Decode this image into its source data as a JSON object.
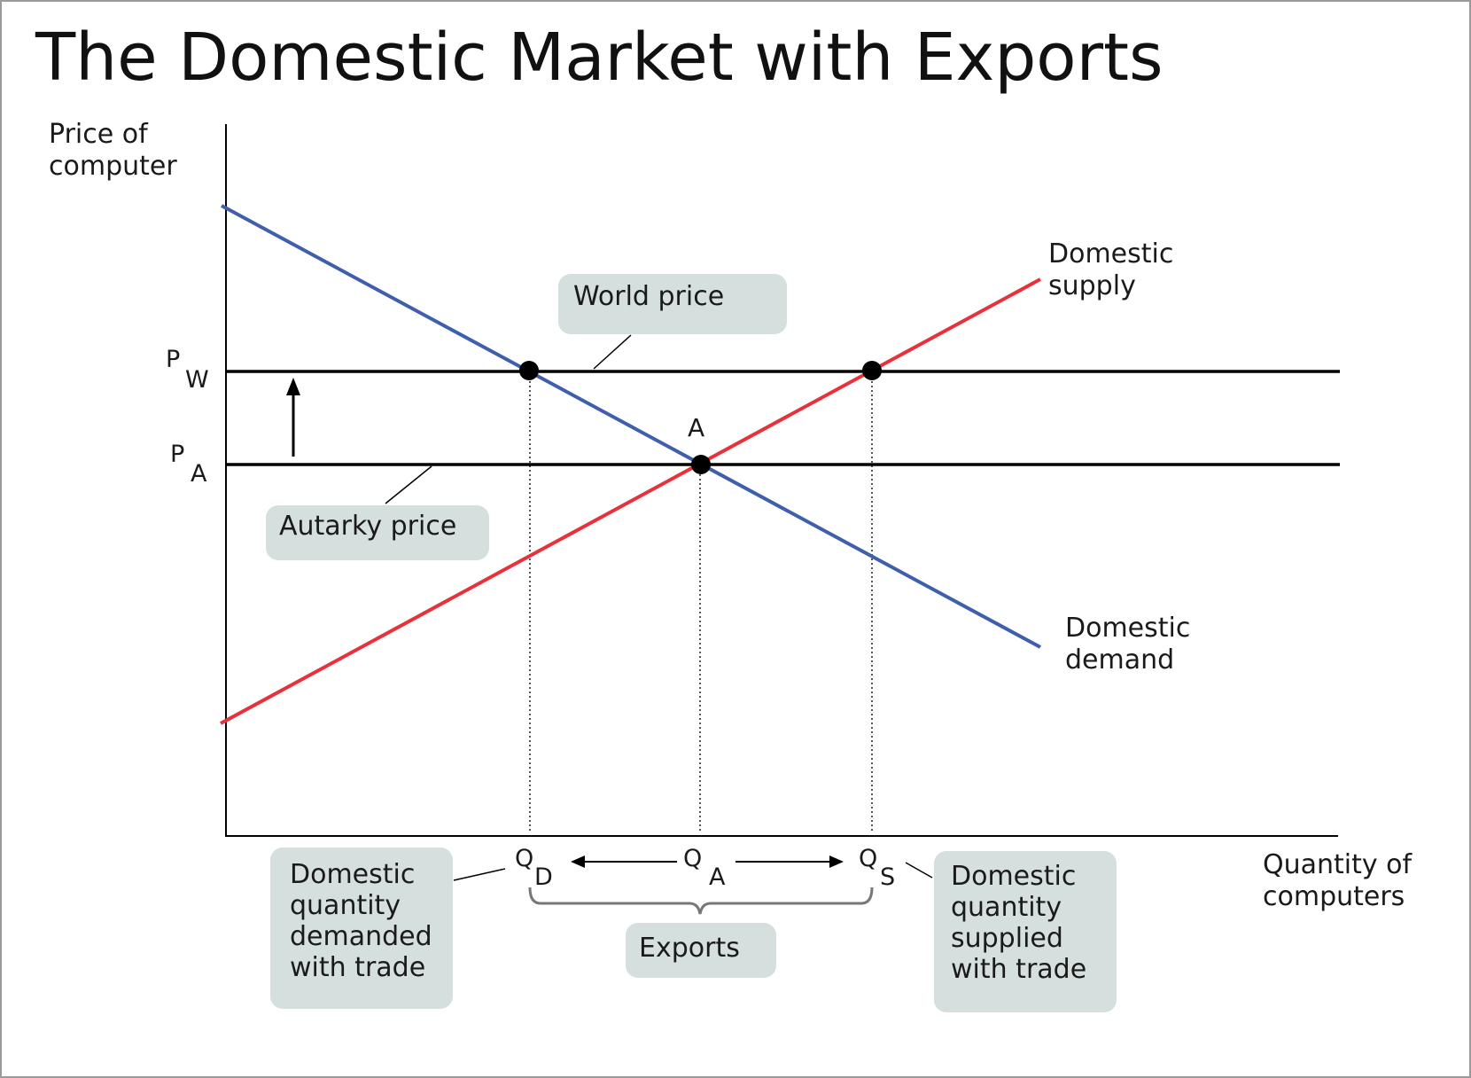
{
  "title": "The Domestic Market with Exports",
  "colors": {
    "supply": "#e8313b",
    "demand": "#3f5fae",
    "price_line": "#000000",
    "callout_bg": "#d5e0de",
    "frame": "#9a9a9a"
  },
  "axes": {
    "y_label_line1": "Price of",
    "y_label_line2": "computer",
    "x_label_line1": "Quantity of",
    "x_label_line2": "computers"
  },
  "price_labels": {
    "pw_main": "P",
    "pw_sub": "W",
    "pa_main": "P",
    "pa_sub": "A"
  },
  "quantity_labels": {
    "qd_main": "Q",
    "qd_sub": "D",
    "qa_main": "Q",
    "qa_sub": "A",
    "qs_main": "Q",
    "qs_sub": "S"
  },
  "curve_labels": {
    "supply_line1": "Domestic",
    "supply_line2": "supply",
    "demand_line1": "Domestic",
    "demand_line2": "demand"
  },
  "point_label_a": "A",
  "callouts": {
    "world_price": "World price",
    "autarky_price": "Autarky price",
    "exports": "Exports",
    "demanded": [
      "Domestic",
      "quantity",
      "demanded",
      "with trade"
    ],
    "supplied": [
      "Domestic",
      "quantity",
      "supplied",
      "with trade"
    ]
  }
}
